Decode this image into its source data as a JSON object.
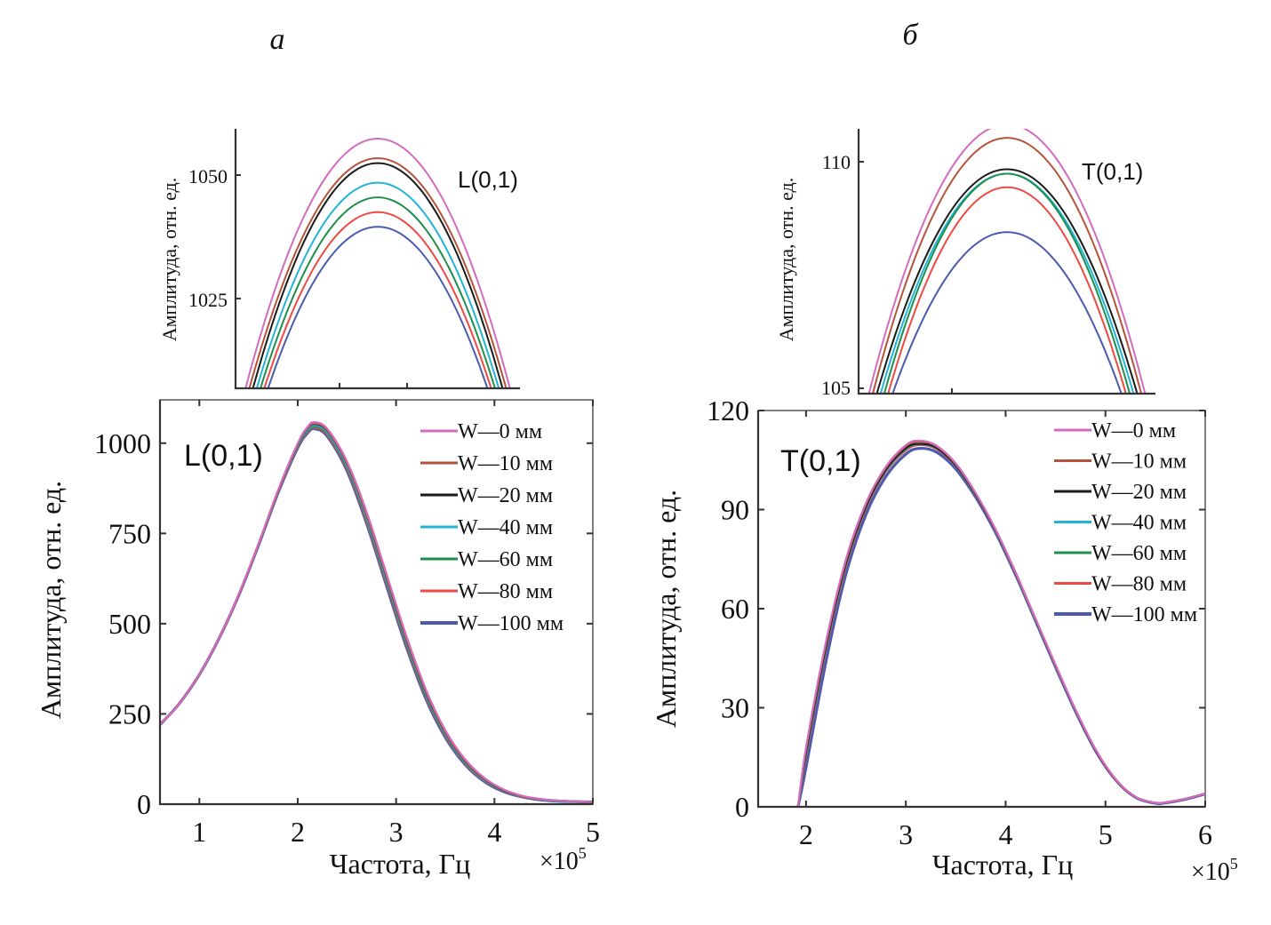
{
  "panels": {
    "a": {
      "label": "а"
    },
    "b": {
      "label": "б"
    }
  },
  "legend_labels": [
    "W—0 мм",
    "W—10 мм",
    "W—20 мм",
    "W—40 мм",
    "W—60 мм",
    "W—80 мм",
    "W—100 мм"
  ],
  "series_colors": [
    "#d36bbf",
    "#b5533a",
    "#1a1a1a",
    "#22b4d8",
    "#1e8f4c",
    "#ee4a45",
    "#4a5bb0"
  ],
  "chart_data": [
    {
      "id": "a_main",
      "type": "line",
      "annotation": "L(0,1)",
      "xlabel": "Частота, Гц",
      "x_multiplier": "×10^5",
      "ylabel": "Амплитуда, отн. ед.",
      "xlim": [
        0.6,
        5.0
      ],
      "ylim": [
        0,
        1120
      ],
      "xticks": [
        1,
        2,
        3,
        4,
        5
      ],
      "yticks": [
        0,
        250,
        500,
        750,
        1000
      ],
      "grid": false,
      "legend_position": "top-right",
      "x": [
        0.6,
        0.8,
        1.0,
        1.2,
        1.4,
        1.6,
        1.8,
        2.0,
        2.1,
        2.17,
        2.3,
        2.5,
        2.7,
        2.9,
        3.1,
        3.3,
        3.5,
        3.7,
        3.9,
        4.1,
        4.3,
        4.5,
        4.7,
        5.0
      ],
      "series": [
        {
          "name": "W—0 мм",
          "peak": 1058,
          "values": [
            220,
            280,
            360,
            460,
            580,
            720,
            870,
            1000,
            1045,
            1058,
            1040,
            950,
            810,
            640,
            470,
            320,
            205,
            125,
            72,
            40,
            22,
            13,
            9,
            6
          ]
        },
        {
          "name": "W—10 мм",
          "peak": 1054,
          "values": [
            220,
            280,
            360,
            460,
            580,
            720,
            868,
            998,
            1042,
            1054,
            1036,
            945,
            803,
            633,
            463,
            314,
            200,
            121,
            70,
            39,
            21,
            13,
            9,
            6
          ]
        },
        {
          "name": "W—20 мм",
          "peak": 1053,
          "values": [
            220,
            280,
            360,
            460,
            580,
            720,
            868,
            997,
            1041,
            1053,
            1035,
            944,
            802,
            631,
            461,
            312,
            199,
            120,
            69,
            38,
            21,
            13,
            9,
            6
          ]
        },
        {
          "name": "W—40 мм",
          "peak": 1049,
          "values": [
            220,
            280,
            360,
            460,
            580,
            719,
            866,
            994,
            1037,
            1049,
            1030,
            938,
            795,
            624,
            455,
            307,
            195,
            117,
            67,
            37,
            20,
            12,
            8,
            6
          ]
        },
        {
          "name": "W—60 мм",
          "peak": 1046,
          "values": [
            220,
            280,
            360,
            460,
            579,
            718,
            865,
            992,
            1034,
            1046,
            1027,
            934,
            790,
            619,
            450,
            303,
            192,
            115,
            66,
            36,
            20,
            12,
            8,
            6
          ]
        },
        {
          "name": "W—80 мм",
          "peak": 1043,
          "values": [
            220,
            280,
            360,
            459,
            578,
            717,
            863,
            989,
            1031,
            1043,
            1023,
            929,
            784,
            613,
            445,
            299,
            189,
            113,
            64,
            35,
            19,
            12,
            8,
            6
          ]
        },
        {
          "name": "W—100 мм",
          "peak": 1040,
          "values": [
            220,
            280,
            359,
            459,
            578,
            716,
            862,
            987,
            1028,
            1040,
            1019,
            924,
            778,
            607,
            439,
            294,
            185,
            110,
            62,
            34,
            19,
            11,
            8,
            6
          ]
        }
      ]
    },
    {
      "id": "a_inset",
      "type": "line",
      "annotation": "L(0,1)",
      "ylabel": "Амплитуда, отн. ед.",
      "xlim": [
        1.95,
        2.4
      ],
      "ylim": [
        1007,
        1060
      ],
      "yticks": [
        1025,
        1050
      ],
      "xticks_unlabeled": 2,
      "peaks": [
        1058,
        1054,
        1053,
        1049,
        1046,
        1043,
        1040
      ]
    },
    {
      "id": "b_main",
      "type": "line",
      "annotation": "T(0,1)",
      "xlabel": "Частота, Гц",
      "x_multiplier": "×10^5",
      "ylabel": "Амплитуда, отн. ед.",
      "xlim": [
        1.52,
        6.0
      ],
      "ylim": [
        0,
        120
      ],
      "xticks": [
        2,
        3,
        4,
        5,
        6
      ],
      "yticks": [
        0,
        30,
        60,
        90,
        120
      ],
      "grid": false,
      "legend_position": "top-right",
      "x": [
        1.92,
        2.0,
        2.2,
        2.4,
        2.6,
        2.8,
        3.0,
        3.13,
        3.3,
        3.5,
        3.7,
        3.9,
        4.1,
        4.3,
        4.5,
        4.7,
        4.9,
        5.1,
        5.3,
        5.5,
        5.6,
        5.8,
        6.0
      ],
      "series": [
        {
          "name": "W—0 мм",
          "peak": 110.9,
          "values": [
            0,
            18,
            50,
            75,
            92,
            103,
            109.5,
            110.9,
            109.5,
            104,
            95,
            84,
            71,
            57,
            43,
            29.5,
            17.5,
            8.5,
            3,
            1.2,
            1.3,
            2.4,
            4
          ]
        },
        {
          "name": "W—10 мм",
          "peak": 110.6,
          "values": [
            0,
            17.5,
            49.5,
            74.6,
            91.7,
            102.7,
            109.2,
            110.6,
            109.3,
            103.8,
            94.9,
            83.9,
            70.9,
            56.9,
            42.9,
            29.4,
            17.4,
            8.4,
            3,
            1.2,
            1.3,
            2.4,
            4
          ]
        },
        {
          "name": "W—20 мм",
          "peak": 109.9,
          "values": [
            0,
            16.5,
            48.5,
            73.8,
            91,
            102.1,
            108.6,
            109.9,
            108.8,
            103.4,
            94.6,
            83.7,
            70.8,
            56.8,
            42.8,
            29.3,
            17.3,
            8.4,
            3,
            1.2,
            1.3,
            2.4,
            4
          ]
        },
        {
          "name": "W—40 мм",
          "peak": 109.8,
          "values": [
            0,
            16,
            48,
            73.5,
            90.8,
            101.9,
            108.4,
            109.8,
            108.7,
            103.3,
            94.5,
            83.6,
            70.7,
            56.7,
            42.7,
            29.2,
            17.3,
            8.4,
            3,
            1.2,
            1.3,
            2.4,
            4
          ]
        },
        {
          "name": "W—60 мм",
          "peak": 109.8,
          "values": [
            0,
            15.8,
            47.8,
            73.3,
            90.7,
            101.8,
            108.3,
            109.8,
            108.7,
            103.3,
            94.5,
            83.6,
            70.7,
            56.7,
            42.7,
            29.2,
            17.3,
            8.4,
            3,
            1.2,
            1.3,
            2.4,
            4
          ]
        },
        {
          "name": "W—80 мм",
          "peak": 109.5,
          "values": [
            0,
            15,
            47,
            72.6,
            90.2,
            101.4,
            107.9,
            109.5,
            108.4,
            103.1,
            94.3,
            83.5,
            70.6,
            56.6,
            42.6,
            29.1,
            17.2,
            8.3,
            3,
            1.2,
            1.3,
            2.4,
            4
          ]
        },
        {
          "name": "W—100 мм",
          "peak": 108.5,
          "values": [
            0,
            12,
            44,
            70.5,
            88.5,
            100,
            106.8,
            108.5,
            107.5,
            102.3,
            93.7,
            83,
            70.2,
            56.3,
            42.3,
            28.9,
            17,
            8.2,
            2.9,
            1.1,
            1.2,
            2.3,
            3.9
          ]
        }
      ]
    },
    {
      "id": "b_inset",
      "type": "line",
      "annotation": "T(0,1)",
      "ylabel": "Амплитуда, отн. ед.",
      "xlim": [
        2.75,
        3.6
      ],
      "ylim": [
        104.9,
        110.8
      ],
      "yticks": [
        105,
        110
      ],
      "xticks_unlabeled": 1,
      "peaks": [
        110.9,
        110.6,
        109.9,
        109.8,
        109.8,
        109.5,
        108.5
      ]
    }
  ]
}
